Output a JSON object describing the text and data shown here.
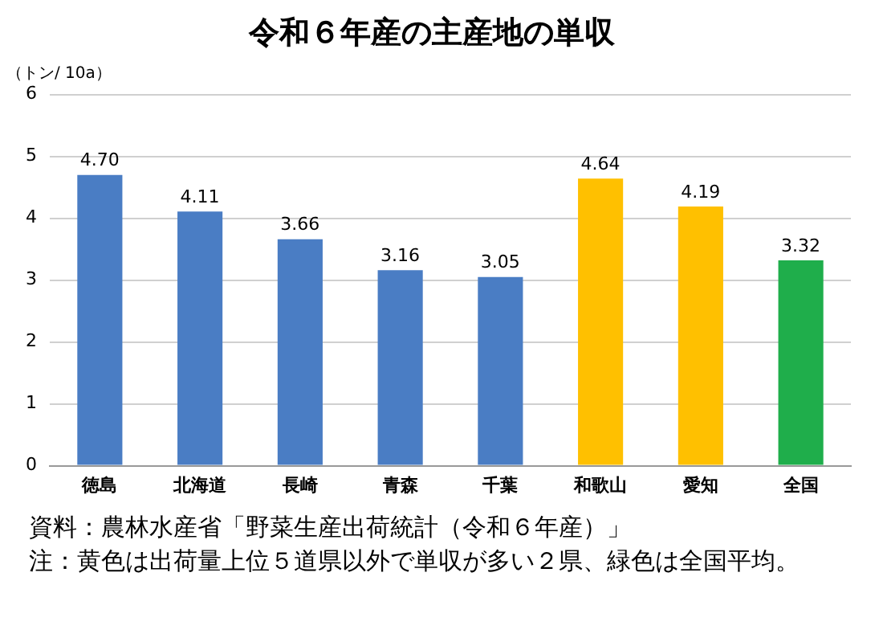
{
  "chart_data": {
    "type": "bar",
    "title": "令和６年産の主産地の単収",
    "ylabel": "（トン/ 10a）",
    "categories": [
      "徳島",
      "北海道",
      "長崎",
      "青森",
      "千葉",
      "和歌山",
      "愛知",
      "全国"
    ],
    "values": [
      4.7,
      4.11,
      3.66,
      3.16,
      3.05,
      4.64,
      4.19,
      3.32
    ],
    "value_labels": [
      "4.70",
      "4.11",
      "3.66",
      "3.16",
      "3.05",
      "4.64",
      "4.19",
      "3.32"
    ],
    "colors": [
      "#4a7dc4",
      "#4a7dc4",
      "#4a7dc4",
      "#4a7dc4",
      "#4a7dc4",
      "#ffc000",
      "#ffc000",
      "#1fae4b"
    ],
    "ylim": [
      0,
      6
    ],
    "yticks": [
      0,
      1,
      2,
      3,
      4,
      5,
      6
    ],
    "grid": "y",
    "legend": false,
    "annotations": [
      "資料：農林水産省「野菜生産出荷統計（令和６年産）」",
      "注：黄色は出荷量上位５道県以外で単収が多い２県、緑色は全国平均。"
    ]
  }
}
